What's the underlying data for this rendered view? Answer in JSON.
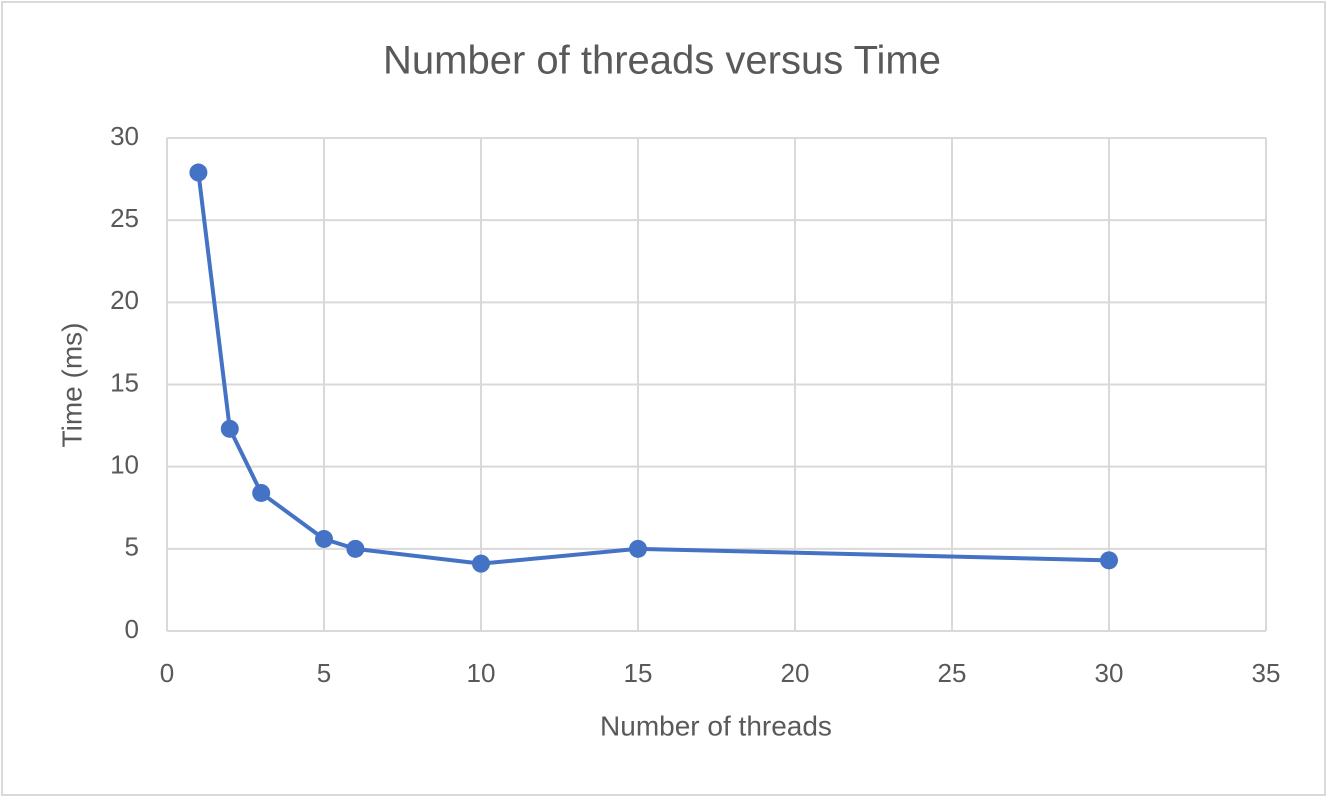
{
  "chart_data": {
    "type": "line",
    "title": "Number of threads versus Time",
    "x_label": "Number of threads",
    "y_label": "Time (ms)",
    "x": [
      1,
      2,
      3,
      5,
      6,
      10,
      15,
      30
    ],
    "series": [
      {
        "name": "Time (ms)",
        "color": "#4472c4",
        "values": [
          27.9,
          12.3,
          8.4,
          5.6,
          5.0,
          4.1,
          5.0,
          4.3
        ]
      }
    ],
    "xlim": [
      0,
      35
    ],
    "xticks": [
      0,
      5,
      10,
      15,
      20,
      25,
      30,
      35
    ],
    "ylim": [
      0,
      30
    ],
    "yticks": [
      0,
      5,
      10,
      15,
      20,
      25,
      30
    ],
    "grid": true
  }
}
